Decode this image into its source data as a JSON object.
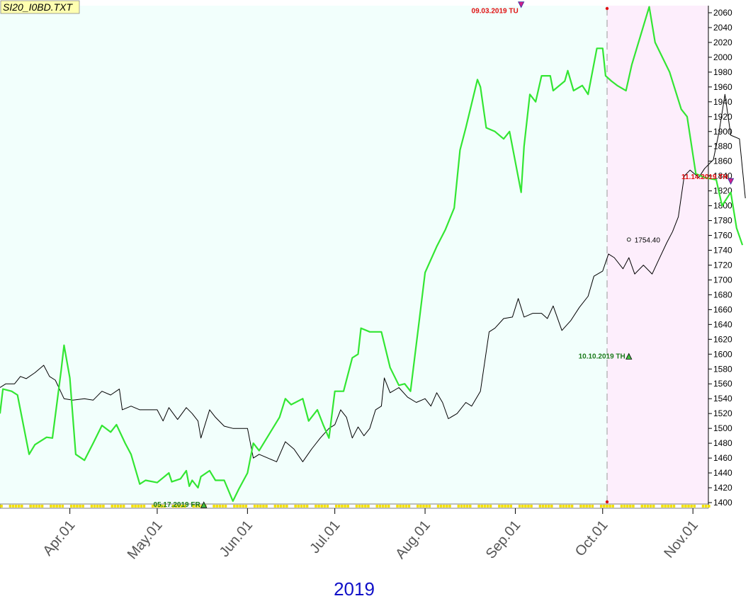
{
  "file_label": "SI20_I0BD.TXT",
  "colors": {
    "plot_bg": "#f2fffc",
    "forecast_bg": "#fdeefc",
    "green_line": "#33e633",
    "black_line": "#000000",
    "red_annotation": "#e01010",
    "green_annotation": "#1a7a1a",
    "year": "#1010c8",
    "label_box": "#ffffb0"
  },
  "chart_data": {
    "type": "line",
    "title": "",
    "xlabel": "2019",
    "x_ticks": [
      "Apr.01",
      "May.01",
      "Jun.01",
      "Jul.01",
      "Aug.01",
      "Sep.01",
      "Oct.01",
      "Nov.01"
    ],
    "x_range": [
      "2019-03-08",
      "2019-11-19"
    ],
    "ylim": [
      1395,
      2070
    ],
    "y_ticks": [
      1400,
      1420,
      1440,
      1460,
      1480,
      1500,
      1520,
      1540,
      1560,
      1580,
      1600,
      1620,
      1640,
      1660,
      1680,
      1700,
      1720,
      1740,
      1760,
      1780,
      1800,
      1820,
      1840,
      1860,
      1880,
      1900,
      1920,
      1940,
      1960,
      1980,
      2000,
      2020,
      2040,
      2060
    ],
    "y_axis_side": "right",
    "forecast_start": "2019-10-10",
    "last_value_label": "1754.40",
    "series": [
      {
        "color": "green",
        "points": [
          [
            "2019-03-08",
            1520
          ],
          [
            "2019-03-09",
            1553
          ],
          [
            "2019-03-12",
            1550
          ],
          [
            "2019-03-14",
            1545
          ],
          [
            "2019-03-18",
            1465
          ],
          [
            "2019-03-20",
            1478
          ],
          [
            "2019-03-24",
            1488
          ],
          [
            "2019-03-26",
            1487
          ],
          [
            "2019-03-29",
            1578
          ],
          [
            "2019-03-30",
            1612
          ],
          [
            "2019-04-01",
            1568
          ],
          [
            "2019-04-03",
            1465
          ],
          [
            "2019-04-06",
            1457
          ],
          [
            "2019-04-09",
            1480
          ],
          [
            "2019-04-12",
            1504
          ],
          [
            "2019-04-15",
            1495
          ],
          [
            "2019-04-17",
            1505
          ],
          [
            "2019-04-20",
            1480
          ],
          [
            "2019-04-22",
            1465
          ],
          [
            "2019-04-25",
            1425
          ],
          [
            "2019-04-27",
            1430
          ],
          [
            "2019-05-01",
            1427
          ],
          [
            "2019-05-05",
            1440
          ],
          [
            "2019-05-06",
            1428
          ],
          [
            "2019-05-09",
            1432
          ],
          [
            "2019-05-11",
            1443
          ],
          [
            "2019-05-12",
            1422
          ],
          [
            "2019-05-13",
            1430
          ],
          [
            "2019-05-15",
            1420
          ],
          [
            "2019-05-16",
            1435
          ],
          [
            "2019-05-19",
            1443
          ],
          [
            "2019-05-21",
            1430
          ],
          [
            "2019-05-24",
            1430
          ],
          [
            "2019-05-27",
            1402
          ],
          [
            "2019-05-29",
            1418
          ],
          [
            "2019-06-01",
            1440
          ],
          [
            "2019-06-03",
            1480
          ],
          [
            "2019-06-05",
            1470
          ],
          [
            "2019-06-12",
            1515
          ],
          [
            "2019-06-14",
            1540
          ],
          [
            "2019-06-16",
            1532
          ],
          [
            "2019-06-20",
            1540
          ],
          [
            "2019-06-22",
            1510
          ],
          [
            "2019-06-25",
            1525
          ],
          [
            "2019-06-27",
            1505
          ],
          [
            "2019-06-29",
            1487
          ],
          [
            "2019-07-01",
            1550
          ],
          [
            "2019-07-04",
            1550
          ],
          [
            "2019-07-07",
            1595
          ],
          [
            "2019-07-09",
            1600
          ],
          [
            "2019-07-10",
            1635
          ],
          [
            "2019-07-13",
            1630
          ],
          [
            "2019-07-17",
            1630
          ],
          [
            "2019-07-20",
            1582
          ],
          [
            "2019-07-23",
            1558
          ],
          [
            "2019-07-25",
            1560
          ],
          [
            "2019-07-27",
            1550
          ],
          [
            "2019-07-30",
            1645
          ],
          [
            "2019-08-01",
            1710
          ],
          [
            "2019-08-05",
            1745
          ],
          [
            "2019-08-08",
            1768
          ],
          [
            "2019-08-11",
            1797
          ],
          [
            "2019-08-13",
            1875
          ],
          [
            "2019-08-15",
            1905
          ],
          [
            "2019-08-19",
            1970
          ],
          [
            "2019-08-20",
            1960
          ],
          [
            "2019-08-22",
            1905
          ],
          [
            "2019-08-25",
            1900
          ],
          [
            "2019-08-28",
            1890
          ],
          [
            "2019-08-30",
            1900
          ],
          [
            "2019-09-03",
            1818
          ],
          [
            "2019-09-04",
            1880
          ],
          [
            "2019-09-06",
            1950
          ],
          [
            "2019-09-08",
            1940
          ],
          [
            "2019-09-10",
            1975
          ],
          [
            "2019-09-13",
            1975
          ],
          [
            "2019-09-14",
            1955
          ],
          [
            "2019-09-18",
            1968
          ],
          [
            "2019-09-19",
            1982
          ],
          [
            "2019-09-21",
            1955
          ],
          [
            "2019-09-24",
            1962
          ],
          [
            "2019-09-26",
            1950
          ],
          [
            "2019-09-29",
            2012
          ],
          [
            "2019-10-01",
            2012
          ],
          [
            "2019-10-02",
            1975
          ],
          [
            "2019-10-04",
            1968
          ],
          [
            "2019-10-06",
            1962
          ],
          [
            "2019-10-09",
            1955
          ],
          [
            "2019-10-11",
            1990
          ],
          [
            "2019-10-17",
            2068
          ],
          [
            "2019-10-19",
            2020
          ],
          [
            "2019-10-24",
            1980
          ],
          [
            "2019-10-28",
            1930
          ],
          [
            "2019-10-30",
            1920
          ],
          [
            "2019-11-02",
            1843
          ],
          [
            "2019-11-05",
            1838
          ],
          [
            "2019-11-09",
            1835
          ],
          [
            "2019-11-11",
            1800
          ],
          [
            "2019-11-14",
            1818
          ],
          [
            "2019-11-16",
            1770
          ],
          [
            "2019-11-18",
            1747
          ]
        ]
      },
      {
        "color": "black",
        "points": [
          [
            "2019-03-08",
            1555
          ],
          [
            "2019-03-10",
            1560
          ],
          [
            "2019-03-13",
            1560
          ],
          [
            "2019-03-15",
            1570
          ],
          [
            "2019-03-17",
            1567
          ],
          [
            "2019-03-20",
            1575
          ],
          [
            "2019-03-23",
            1585
          ],
          [
            "2019-03-25",
            1570
          ],
          [
            "2019-03-27",
            1565
          ],
          [
            "2019-03-30",
            1540
          ],
          [
            "2019-04-02",
            1538
          ],
          [
            "2019-04-06",
            1540
          ],
          [
            "2019-04-09",
            1538
          ],
          [
            "2019-04-12",
            1550
          ],
          [
            "2019-04-15",
            1545
          ],
          [
            "2019-04-18",
            1553
          ],
          [
            "2019-04-19",
            1525
          ],
          [
            "2019-04-22",
            1530
          ],
          [
            "2019-04-25",
            1525
          ],
          [
            "2019-04-28",
            1525
          ],
          [
            "2019-05-01",
            1525
          ],
          [
            "2019-05-03",
            1510
          ],
          [
            "2019-05-05",
            1528
          ],
          [
            "2019-05-08",
            1512
          ],
          [
            "2019-05-11",
            1528
          ],
          [
            "2019-05-13",
            1520
          ],
          [
            "2019-05-15",
            1510
          ],
          [
            "2019-05-16",
            1487
          ],
          [
            "2019-05-19",
            1525
          ],
          [
            "2019-05-21",
            1515
          ],
          [
            "2019-05-24",
            1503
          ],
          [
            "2019-05-27",
            1500
          ],
          [
            "2019-05-30",
            1500
          ],
          [
            "2019-06-01",
            1500
          ],
          [
            "2019-06-03",
            1460
          ],
          [
            "2019-06-05",
            1465
          ],
          [
            "2019-06-08",
            1460
          ],
          [
            "2019-06-11",
            1455
          ],
          [
            "2019-06-14",
            1482
          ],
          [
            "2019-06-17",
            1472
          ],
          [
            "2019-06-20",
            1455
          ],
          [
            "2019-06-23",
            1472
          ],
          [
            "2019-06-26",
            1487
          ],
          [
            "2019-06-29",
            1500
          ],
          [
            "2019-07-01",
            1505
          ],
          [
            "2019-07-03",
            1525
          ],
          [
            "2019-07-05",
            1515
          ],
          [
            "2019-07-07",
            1487
          ],
          [
            "2019-07-09",
            1502
          ],
          [
            "2019-07-11",
            1490
          ],
          [
            "2019-07-13",
            1500
          ],
          [
            "2019-07-15",
            1525
          ],
          [
            "2019-07-17",
            1530
          ],
          [
            "2019-07-18",
            1568
          ],
          [
            "2019-07-20",
            1548
          ],
          [
            "2019-07-23",
            1555
          ],
          [
            "2019-07-26",
            1542
          ],
          [
            "2019-07-29",
            1535
          ],
          [
            "2019-08-01",
            1540
          ],
          [
            "2019-08-03",
            1530
          ],
          [
            "2019-08-05",
            1548
          ],
          [
            "2019-08-07",
            1535
          ],
          [
            "2019-08-09",
            1513
          ],
          [
            "2019-08-12",
            1520
          ],
          [
            "2019-08-15",
            1535
          ],
          [
            "2019-08-17",
            1530
          ],
          [
            "2019-08-20",
            1550
          ],
          [
            "2019-08-23",
            1630
          ],
          [
            "2019-08-25",
            1635
          ],
          [
            "2019-08-28",
            1648
          ],
          [
            "2019-08-31",
            1650
          ],
          [
            "2019-09-02",
            1675
          ],
          [
            "2019-09-04",
            1650
          ],
          [
            "2019-09-07",
            1655
          ],
          [
            "2019-09-10",
            1655
          ],
          [
            "2019-09-12",
            1648
          ],
          [
            "2019-09-14",
            1665
          ],
          [
            "2019-09-17",
            1632
          ],
          [
            "2019-09-20",
            1645
          ],
          [
            "2019-09-23",
            1663
          ],
          [
            "2019-09-26",
            1678
          ],
          [
            "2019-09-28",
            1705
          ],
          [
            "2019-10-01",
            1712
          ],
          [
            "2019-10-03",
            1735
          ],
          [
            "2019-10-05",
            1730
          ],
          [
            "2019-10-08",
            1715
          ],
          [
            "2019-10-10",
            1730
          ],
          [
            "2019-10-12",
            1708
          ],
          [
            "2019-10-15",
            1720
          ],
          [
            "2019-10-18",
            1708
          ],
          [
            "2019-10-20",
            1725
          ],
          [
            "2019-10-23",
            1750
          ],
          [
            "2019-10-25",
            1765
          ],
          [
            "2019-10-27",
            1785
          ],
          [
            "2019-10-29",
            1840
          ],
          [
            "2019-10-31",
            1848
          ],
          [
            "2019-11-03",
            1838
          ],
          [
            "2019-11-05",
            1850
          ],
          [
            "2019-11-08",
            1862
          ],
          [
            "2019-11-10",
            1900
          ],
          [
            "2019-11-12",
            1950
          ],
          [
            "2019-11-14",
            1895
          ],
          [
            "2019-11-17",
            1890
          ],
          [
            "2019-11-19",
            1810
          ]
        ]
      }
    ],
    "annotations": [
      {
        "text": "05.17.2019 FR",
        "x": "2019-05-17",
        "y": 1398,
        "kind": "low"
      },
      {
        "text": "09.03.2019 TU",
        "x": "2019-09-03",
        "y": 2068,
        "kind": "high"
      },
      {
        "text": "10.10.2019 TH",
        "x": "2019-10-10",
        "y": 1598,
        "kind": "low"
      },
      {
        "text": "11.14.2019 TH",
        "x": "2019-11-14",
        "y": 1830,
        "kind": "high"
      }
    ]
  }
}
